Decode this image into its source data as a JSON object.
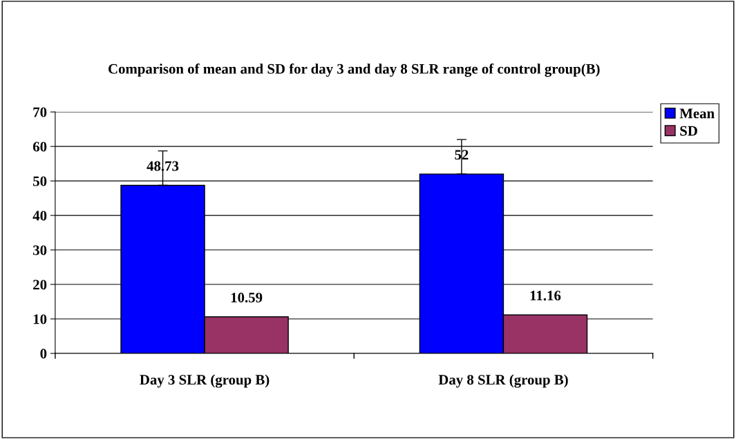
{
  "chart_data": {
    "type": "bar",
    "title": "Comparison of mean and SD for day 3 and day 8 SLR range of control group(B)",
    "categories": [
      "Day 3 SLR (group B)",
      "Day 8 SLR (group B)"
    ],
    "series": [
      {
        "name": "Mean",
        "color": "#0000ff",
        "values": [
          48.73,
          52
        ],
        "errors": [
          [
            48.73,
            58.7
          ],
          [
            52,
            62
          ]
        ]
      },
      {
        "name": "SD",
        "color": "#993366",
        "values": [
          10.59,
          11.16
        ]
      }
    ],
    "ylim": [
      0,
      70
    ],
    "yticks": [
      0,
      10,
      20,
      30,
      40,
      50,
      60,
      70
    ],
    "grid": "y",
    "legend": "top right",
    "data_labels": true
  }
}
